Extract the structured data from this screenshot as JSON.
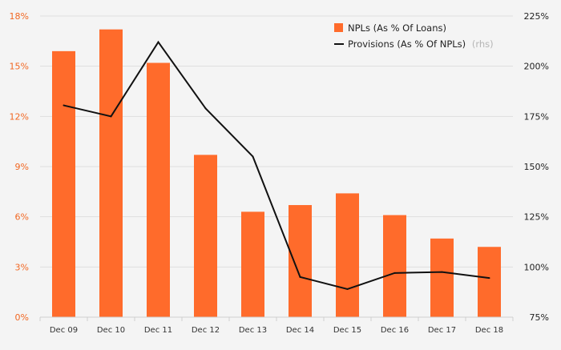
{
  "chart_data": {
    "type": "bar",
    "categories": [
      "Dec 09",
      "Dec 10",
      "Dec 11",
      "Dec 12",
      "Dec 13",
      "Dec 14",
      "Dec 15",
      "Dec 16",
      "Dec 17",
      "Dec 18"
    ],
    "series": [
      {
        "name": "NPLs (As % Of Loans)",
        "type": "bar",
        "axis": "left",
        "color": "#ff6b2b",
        "values": [
          15.9,
          17.2,
          15.2,
          9.7,
          6.3,
          6.7,
          7.4,
          6.1,
          4.7,
          4.2
        ]
      },
      {
        "name": "Provisions (As % Of NPLs)",
        "name_note": "(rhs)",
        "type": "line",
        "axis": "right",
        "color": "#111111",
        "values": [
          180.5,
          175,
          212,
          179,
          155,
          95,
          89,
          97,
          97.5,
          94.5
        ]
      }
    ],
    "y_left": {
      "lim": [
        0,
        18
      ],
      "ticks": [
        0,
        3,
        6,
        9,
        12,
        15,
        18
      ],
      "tick_labels": [
        "0%",
        "3%",
        "6%",
        "9%",
        "12%",
        "15%",
        "18%"
      ]
    },
    "y_right": {
      "lim": [
        75,
        225
      ],
      "ticks": [
        75,
        100,
        125,
        150,
        175,
        200,
        225
      ],
      "tick_labels": [
        "75%",
        "100%",
        "125%",
        "150%",
        "175%",
        "200%",
        "225%"
      ]
    },
    "grid": true,
    "legend_position": "top-right",
    "colors": {
      "background": "#f4f4f4",
      "grid": "#dedede",
      "left_axis_text": "#f26722",
      "right_axis_text": "#222222"
    }
  }
}
